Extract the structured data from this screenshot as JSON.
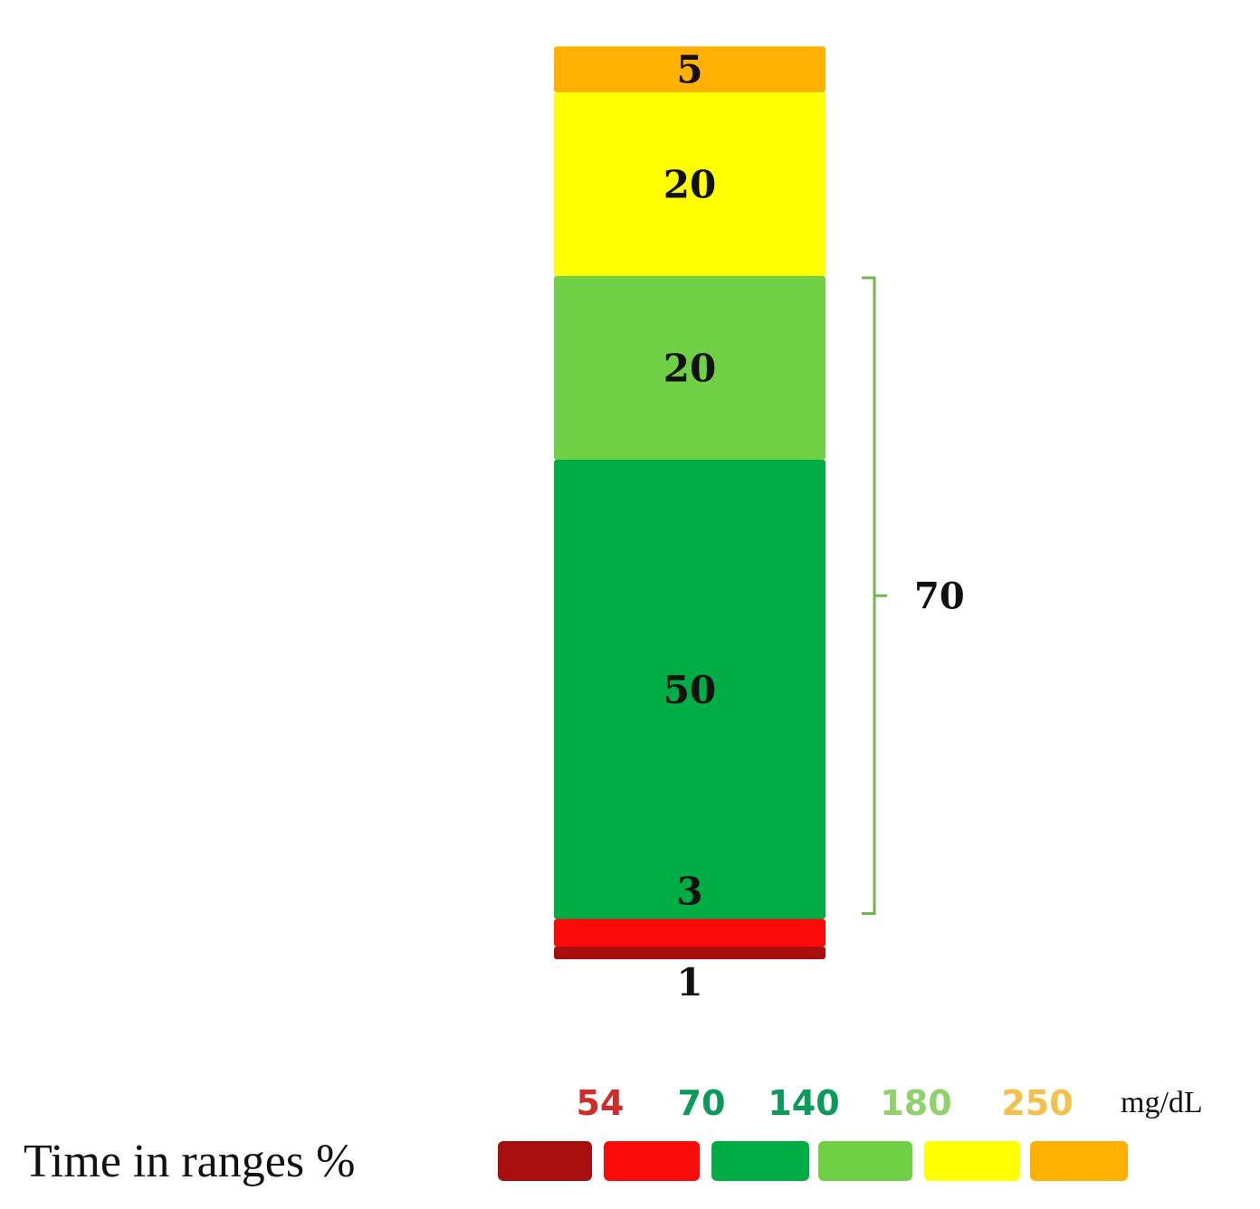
{
  "chart_data": {
    "type": "bar",
    "stacked": true,
    "segments": [
      {
        "range": "<54",
        "value": 1,
        "color": "#a80e0e",
        "label": "1"
      },
      {
        "range": "54-70",
        "value": 3,
        "color": "#fc0a0a",
        "label": "3"
      },
      {
        "range": "70-140",
        "value": 50,
        "color": "#00ad45",
        "label": "50"
      },
      {
        "range": "140-180",
        "value": 20,
        "color": "#6fcf45",
        "label": "20"
      },
      {
        "range": "180-250",
        "value": 20,
        "color": "#ffff00",
        "label": "20"
      },
      {
        "range": ">250",
        "value": 5,
        "color": "#ffb000",
        "label": "5"
      }
    ],
    "bracket": {
      "label": "70",
      "from_segment": 2,
      "to_segment": 3,
      "color": "#6fb84a"
    },
    "legend": {
      "title": "Time in ranges %",
      "unit": "mg/dL",
      "thresholds": [
        {
          "label": "54",
          "color": "#d22b2b"
        },
        {
          "label": "70",
          "color": "#0a9a5a"
        },
        {
          "label": "140",
          "color": "#0a9a5a"
        },
        {
          "label": "180",
          "color": "#8fd16a"
        },
        {
          "label": "250",
          "color": "#f5c04a"
        }
      ],
      "swatches": [
        "#a80e0e",
        "#fc0a0a",
        "#00ad45",
        "#6fcf45",
        "#ffff00",
        "#ffb000"
      ]
    }
  }
}
